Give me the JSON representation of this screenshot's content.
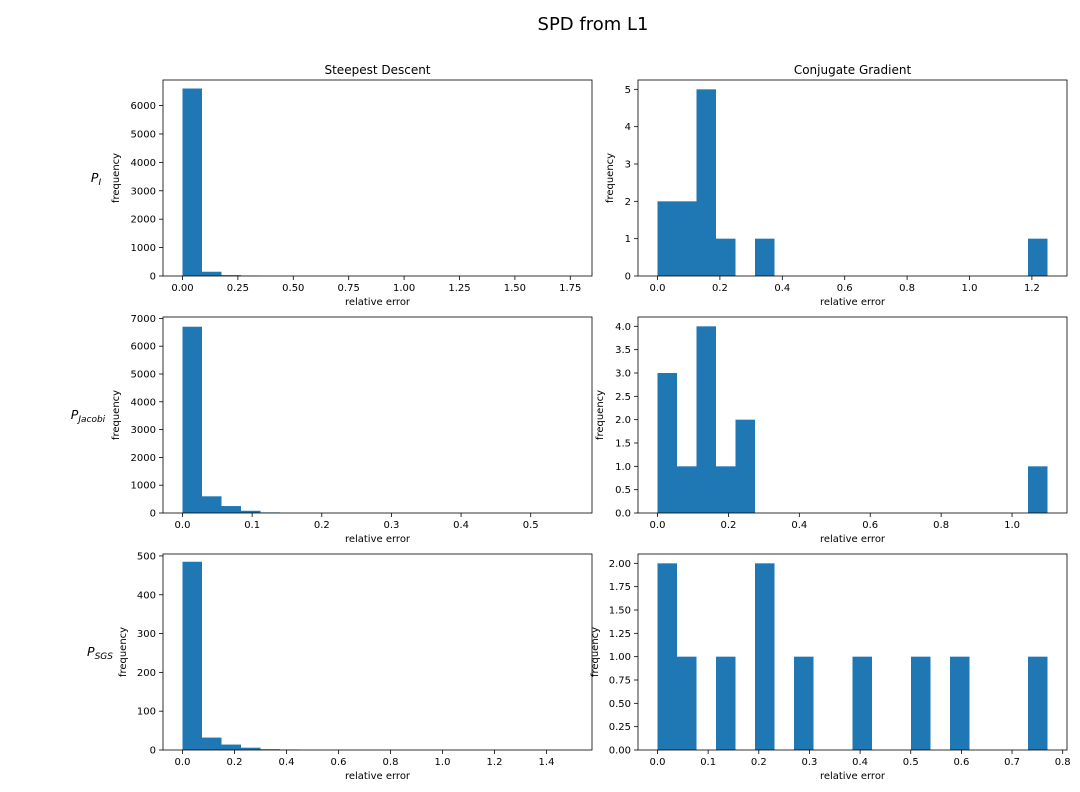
{
  "figure": {
    "title": "SPD from L1",
    "column_titles": [
      "Steepest Descent",
      "Conjugate Gradient"
    ],
    "row_labels": [
      {
        "base": "P",
        "sub": "I"
      },
      {
        "base": "P",
        "sub": "Jacobi"
      },
      {
        "base": "P",
        "sub": "SGS"
      }
    ],
    "bar_color": "#1f77b4"
  },
  "chart_data": [
    {
      "type": "bar",
      "row": 0,
      "col": 0,
      "xlabel": "relative error",
      "ylabel": "frequency",
      "xlim": [
        -0.088,
        1.848
      ],
      "ylim": [
        0,
        6900
      ],
      "xticks": [
        0.0,
        0.25,
        0.5,
        0.75,
        1.0,
        1.25,
        1.5,
        1.75
      ],
      "xtick_labels": [
        "0.00",
        "0.25",
        "0.50",
        "0.75",
        "1.00",
        "1.25",
        "1.50",
        "1.75"
      ],
      "yticks": [
        0,
        1000,
        2000,
        3000,
        4000,
        5000,
        6000
      ],
      "ytick_labels": [
        "0",
        "1000",
        "2000",
        "3000",
        "4000",
        "5000",
        "6000"
      ],
      "bin_edges": [
        0.0,
        0.088,
        0.176,
        0.264,
        0.352
      ],
      "values": [
        6600,
        150,
        30,
        10
      ]
    },
    {
      "type": "bar",
      "row": 0,
      "col": 1,
      "xlabel": "relative error",
      "ylabel": "frequency",
      "xlim": [
        -0.0625,
        1.3125
      ],
      "ylim": [
        0,
        5.25
      ],
      "xticks": [
        0.0,
        0.2,
        0.4,
        0.6,
        0.8,
        1.0,
        1.2
      ],
      "xtick_labels": [
        "0.0",
        "0.2",
        "0.4",
        "0.6",
        "0.8",
        "1.0",
        "1.2"
      ],
      "yticks": [
        0,
        1,
        2,
        3,
        4,
        5
      ],
      "ytick_labels": [
        "0",
        "1",
        "2",
        "3",
        "4",
        "5"
      ],
      "bin_edges": [
        0.0,
        0.0625,
        0.125,
        0.1875,
        0.25,
        0.3125,
        0.375,
        0.4375,
        0.5,
        0.5625,
        0.625,
        0.6875,
        0.75,
        0.8125,
        0.875,
        0.9375,
        1.0,
        1.0625,
        1.125,
        1.1875,
        1.25
      ],
      "values": [
        2,
        2,
        5,
        1,
        0,
        1,
        0,
        0,
        0,
        0,
        0,
        0,
        0,
        0,
        0,
        0,
        0,
        0,
        0,
        1
      ]
    },
    {
      "type": "bar",
      "row": 1,
      "col": 0,
      "xlabel": "relative error",
      "ylabel": "frequency",
      "xlim": [
        -0.028,
        0.588
      ],
      "ylim": [
        0,
        7050
      ],
      "xticks": [
        0.0,
        0.1,
        0.2,
        0.3,
        0.4,
        0.5
      ],
      "xtick_labels": [
        "0.0",
        "0.1",
        "0.2",
        "0.3",
        "0.4",
        "0.5"
      ],
      "yticks": [
        0,
        1000,
        2000,
        3000,
        4000,
        5000,
        6000,
        7000
      ],
      "ytick_labels": [
        "0",
        "1000",
        "2000",
        "3000",
        "4000",
        "5000",
        "6000",
        "7000"
      ],
      "bin_edges": [
        0.0,
        0.028,
        0.056,
        0.084,
        0.112,
        0.14
      ],
      "values": [
        6700,
        600,
        250,
        80,
        20
      ]
    },
    {
      "type": "bar",
      "row": 1,
      "col": 1,
      "xlabel": "relative error",
      "ylabel": "frequency",
      "xlim": [
        -0.055,
        1.155
      ],
      "ylim": [
        0,
        4.2
      ],
      "xticks": [
        0.0,
        0.2,
        0.4,
        0.6,
        0.8,
        1.0
      ],
      "xtick_labels": [
        "0.0",
        "0.2",
        "0.4",
        "0.6",
        "0.8",
        "1.0"
      ],
      "yticks": [
        0,
        0.5,
        1.0,
        1.5,
        2.0,
        2.5,
        3.0,
        3.5,
        4.0
      ],
      "ytick_labels": [
        "0.0",
        "0.5",
        "1.0",
        "1.5",
        "2.0",
        "2.5",
        "3.0",
        "3.5",
        "4.0"
      ],
      "bin_edges": [
        0.0,
        0.055,
        0.11,
        0.165,
        0.22,
        0.275,
        0.33,
        0.385,
        0.44,
        0.495,
        0.55,
        0.605,
        0.66,
        0.715,
        0.77,
        0.825,
        0.88,
        0.935,
        0.99,
        1.045,
        1.1
      ],
      "values": [
        3,
        1,
        4,
        1,
        2,
        0,
        0,
        0,
        0,
        0,
        0,
        0,
        0,
        0,
        0,
        0,
        0,
        0,
        0,
        1
      ]
    },
    {
      "type": "bar",
      "row": 2,
      "col": 0,
      "xlabel": "relative error",
      "ylabel": "frequency",
      "xlim": [
        -0.075,
        1.575
      ],
      "ylim": [
        0,
        505
      ],
      "xticks": [
        0.0,
        0.2,
        0.4,
        0.6,
        0.8,
        1.0,
        1.2,
        1.4
      ],
      "xtick_labels": [
        "0.0",
        "0.2",
        "0.4",
        "0.6",
        "0.8",
        "1.0",
        "1.2",
        "1.4"
      ],
      "yticks": [
        0,
        100,
        200,
        300,
        400,
        500
      ],
      "ytick_labels": [
        "0",
        "100",
        "200",
        "300",
        "400",
        "500"
      ],
      "bin_edges": [
        0.0,
        0.075,
        0.15,
        0.225,
        0.3,
        0.375,
        0.45
      ],
      "values": [
        485,
        32,
        14,
        6,
        2,
        1
      ]
    },
    {
      "type": "bar",
      "row": 2,
      "col": 1,
      "xlabel": "relative error",
      "ylabel": "frequency",
      "xlim": [
        -0.0385,
        0.8085
      ],
      "ylim": [
        0,
        2.1
      ],
      "xticks": [
        0.0,
        0.1,
        0.2,
        0.3,
        0.4,
        0.5,
        0.6,
        0.7,
        0.8
      ],
      "xtick_labels": [
        "0.0",
        "0.1",
        "0.2",
        "0.3",
        "0.4",
        "0.5",
        "0.6",
        "0.7",
        "0.8"
      ],
      "yticks": [
        0,
        0.25,
        0.5,
        0.75,
        1.0,
        1.25,
        1.5,
        1.75,
        2.0
      ],
      "ytick_labels": [
        "0.00",
        "0.25",
        "0.50",
        "0.75",
        "1.00",
        "1.25",
        "1.50",
        "1.75",
        "2.00"
      ],
      "bin_edges": [
        0.0,
        0.0385,
        0.077,
        0.1155,
        0.154,
        0.1925,
        0.231,
        0.2695,
        0.308,
        0.3465,
        0.385,
        0.4235,
        0.462,
        0.5005,
        0.539,
        0.5775,
        0.616,
        0.6545,
        0.693,
        0.7315,
        0.77
      ],
      "values": [
        2,
        1,
        0,
        1,
        0,
        2,
        0,
        1,
        0,
        0,
        1,
        0,
        0,
        1,
        0,
        1,
        0,
        0,
        0,
        1
      ]
    }
  ]
}
